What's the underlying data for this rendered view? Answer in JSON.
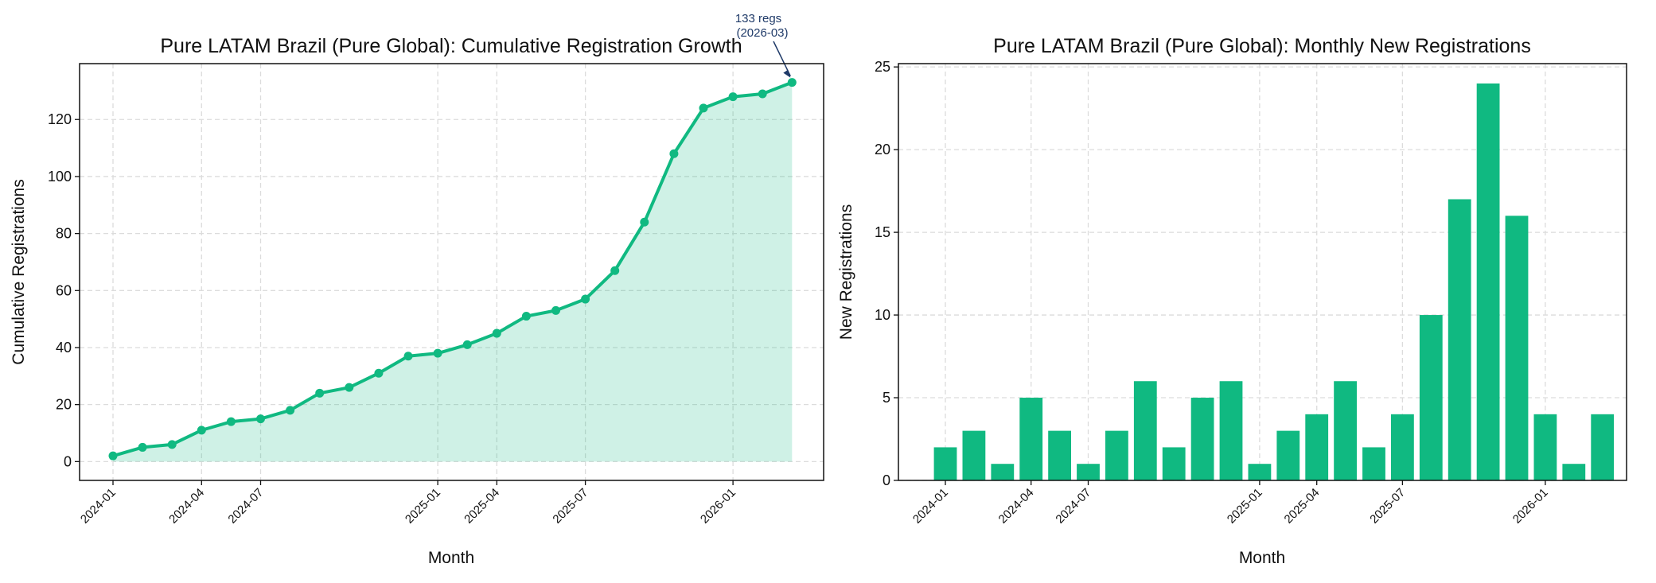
{
  "chart_data": [
    {
      "type": "area",
      "title": "Pure LATAM Brazil (Pure Global): Cumulative Registration Growth",
      "xlabel": "Month",
      "ylabel": "Cumulative Registrations",
      "ylim": [
        -6.6,
        139.6
      ],
      "yticks": [
        0,
        20,
        40,
        60,
        80,
        100,
        120
      ],
      "xtick_labels": [
        {
          "index": 0,
          "label": "2024-01"
        },
        {
          "index": 3,
          "label": "2024-04"
        },
        {
          "index": 5,
          "label": "2024-07"
        },
        {
          "index": 11,
          "label": "2025-01"
        },
        {
          "index": 13,
          "label": "2025-04"
        },
        {
          "index": 16,
          "label": "2025-07"
        },
        {
          "index": 21,
          "label": "2026-01"
        }
      ],
      "values": [
        2,
        5,
        6,
        11,
        14,
        15,
        18,
        24,
        26,
        31,
        37,
        38,
        41,
        45,
        51,
        53,
        57,
        67,
        84,
        108,
        124,
        128,
        129,
        133
      ],
      "color": "#10b981",
      "grid": true,
      "annotation": {
        "line1": "133 regs",
        "line2": "(2026-03)",
        "color": "#1f3a68"
      }
    },
    {
      "type": "bar",
      "title": "Pure LATAM Brazil (Pure Global): Monthly New Registrations",
      "xlabel": "Month",
      "ylabel": "New Registrations",
      "ylim": [
        0,
        25.2
      ],
      "yticks": [
        0,
        5,
        10,
        15,
        20,
        25
      ],
      "xtick_labels": [
        {
          "index": 0,
          "label": "2024-01"
        },
        {
          "index": 3,
          "label": "2024-04"
        },
        {
          "index": 5,
          "label": "2024-07"
        },
        {
          "index": 11,
          "label": "2025-01"
        },
        {
          "index": 13,
          "label": "2025-04"
        },
        {
          "index": 16,
          "label": "2025-07"
        },
        {
          "index": 21,
          "label": "2026-01"
        }
      ],
      "values": [
        2,
        3,
        1,
        5,
        3,
        1,
        3,
        6,
        2,
        5,
        6,
        1,
        3,
        4,
        6,
        2,
        4,
        10,
        17,
        24,
        16,
        4,
        1,
        4
      ],
      "color": "#10b981",
      "grid": true
    }
  ]
}
